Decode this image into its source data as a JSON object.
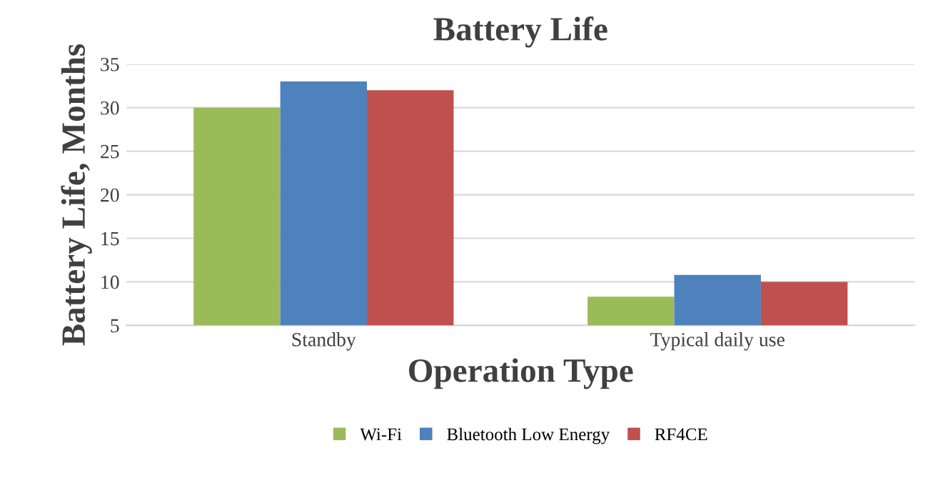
{
  "chart_data": {
    "type": "bar",
    "title": "Battery Life",
    "xlabel": "Operation Type",
    "ylabel": "Battery Life, Months",
    "categories": [
      "Standby",
      "Typical daily use"
    ],
    "series": [
      {
        "name": "Wi-Fi",
        "color": "#9bbb59",
        "values": [
          30,
          8.3
        ]
      },
      {
        "name": "Bluetooth Low Energy",
        "color": "#4f81bd",
        "values": [
          33,
          10.8
        ]
      },
      {
        "name": "RF4CE",
        "color": "#c0504d",
        "values": [
          32,
          10
        ]
      }
    ],
    "ylim": [
      5,
      35
    ],
    "yticks": [
      5,
      10,
      15,
      20,
      25,
      30,
      35
    ],
    "grid": "y",
    "legend": "bottom"
  }
}
